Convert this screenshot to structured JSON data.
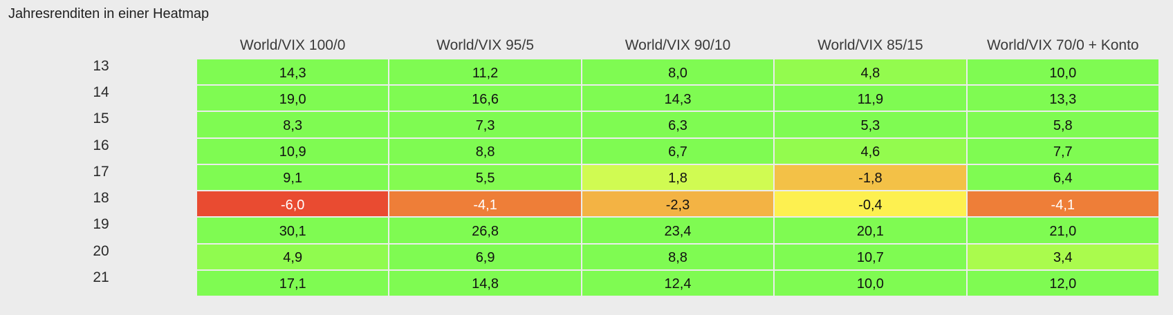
{
  "title": "Jahresrenditen in einer Heatmap",
  "chart_data": {
    "type": "heatmap",
    "title": "Jahresrenditen in einer Heatmap",
    "columns": [
      "World/VIX 100/0",
      "World/VIX 95/5",
      "World/VIX 90/10",
      "World/VIX 85/15",
      "World/VIX 70/0 + Konto"
    ],
    "rows": [
      "13",
      "14",
      "15",
      "16",
      "17",
      "18",
      "19",
      "20",
      "21"
    ],
    "values": [
      [
        14.3,
        11.2,
        8.0,
        4.8,
        10.0
      ],
      [
        19.0,
        16.6,
        14.3,
        11.9,
        13.3
      ],
      [
        8.3,
        7.3,
        6.3,
        5.3,
        5.8
      ],
      [
        10.9,
        8.8,
        6.7,
        4.6,
        7.7
      ],
      [
        9.1,
        5.5,
        1.8,
        -1.8,
        6.4
      ],
      [
        -6.0,
        -4.1,
        -2.3,
        -0.4,
        -4.1
      ],
      [
        30.1,
        26.8,
        23.4,
        20.1,
        21.0
      ],
      [
        4.9,
        6.9,
        8.8,
        10.7,
        3.4
      ],
      [
        17.1,
        14.8,
        12.4,
        10.0,
        12.0
      ]
    ],
    "labels": [
      [
        "14,3",
        "11,2",
        "8,0",
        "4,8",
        "10,0"
      ],
      [
        "19,0",
        "16,6",
        "14,3",
        "11,9",
        "13,3"
      ],
      [
        "8,3",
        "7,3",
        "6,3",
        "5,3",
        "5,8"
      ],
      [
        "10,9",
        "8,8",
        "6,7",
        "4,6",
        "7,7"
      ],
      [
        "9,1",
        "5,5",
        "1,8",
        "-1,8",
        "6,4"
      ],
      [
        "-6,0",
        "-4,1",
        "-2,3",
        "-0,4",
        "-4,1"
      ],
      [
        "30,1",
        "26,8",
        "23,4",
        "20,1",
        "21,0"
      ],
      [
        "4,9",
        "6,9",
        "8,8",
        "10,7",
        "3,4"
      ],
      [
        "17,1",
        "14,8",
        "12,4",
        "10,0",
        "12,0"
      ]
    ],
    "colors": [
      [
        "#7ffb52",
        "#7ffb52",
        "#7ffb52",
        "#93fb4e",
        "#7ffb52"
      ],
      [
        "#7ffb52",
        "#7ffb52",
        "#7ffb52",
        "#7ffb52",
        "#7ffb52"
      ],
      [
        "#7ffb52",
        "#7ffb52",
        "#7ffb52",
        "#7ffb52",
        "#7ffb52"
      ],
      [
        "#7ffb52",
        "#7ffb52",
        "#7ffb52",
        "#93fb4e",
        "#7ffb52"
      ],
      [
        "#7ffb52",
        "#84fb51",
        "#d0fb52",
        "#f3c147",
        "#7ffb52"
      ],
      [
        "#e94b31",
        "#ee7e38",
        "#f3b344",
        "#fdf050",
        "#ee7e38"
      ],
      [
        "#7ffb52",
        "#7ffb52",
        "#7ffb52",
        "#7ffb52",
        "#7ffb52"
      ],
      [
        "#90fb4f",
        "#7ffb52",
        "#7ffb52",
        "#7ffb52",
        "#aafb4d"
      ],
      [
        "#7ffb52",
        "#7ffb52",
        "#7ffb52",
        "#7ffb52",
        "#7ffb52"
      ]
    ],
    "light_text": [
      [
        false,
        false,
        false,
        false,
        false
      ],
      [
        false,
        false,
        false,
        false,
        false
      ],
      [
        false,
        false,
        false,
        false,
        false
      ],
      [
        false,
        false,
        false,
        false,
        false
      ],
      [
        false,
        false,
        false,
        false,
        false
      ],
      [
        true,
        true,
        false,
        false,
        true
      ],
      [
        false,
        false,
        false,
        false,
        false
      ],
      [
        false,
        false,
        false,
        false,
        false
      ],
      [
        false,
        false,
        false,
        false,
        false
      ]
    ],
    "legend": "none",
    "grid": true
  }
}
